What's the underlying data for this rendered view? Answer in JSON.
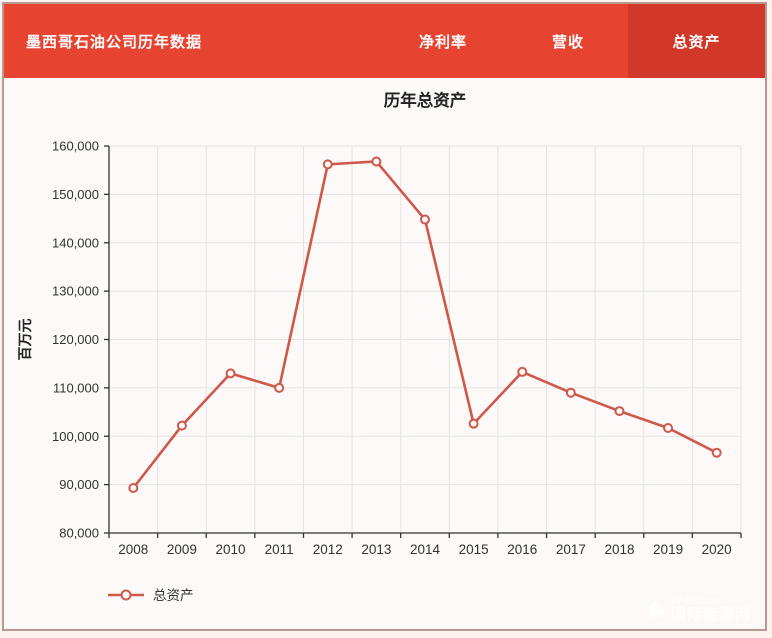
{
  "header": {
    "title": "墨西哥石油公司历年数据",
    "tabs": [
      {
        "label": "净利率",
        "active": false
      },
      {
        "label": "营收",
        "active": false
      },
      {
        "label": "总资产",
        "active": true
      }
    ]
  },
  "watermark": {
    "site": "IN-EN.com",
    "name": "国际能源网"
  },
  "colors": {
    "header_red": "#e74331",
    "active_tab_red": "#d13829",
    "line_red": "#ce584a",
    "axis_dark": "#333333",
    "grid_gray": "#e3e3e3",
    "plot_bg": "#fcf9f8"
  },
  "chart_data": {
    "type": "line",
    "title": "历年总资产",
    "xlabel": "",
    "ylabel": "百万元",
    "categories": [
      "2008",
      "2009",
      "2010",
      "2011",
      "2012",
      "2013",
      "2014",
      "2015",
      "2016",
      "2017",
      "2018",
      "2019",
      "2020"
    ],
    "series": [
      {
        "name": "总资产",
        "values": [
          89300,
          102200,
          113000,
          110000,
          156200,
          156800,
          144800,
          102600,
          113300,
          109000,
          105200,
          101700,
          96600
        ]
      }
    ],
    "ylim": [
      80000,
      160000
    ],
    "ytick_step": 10000,
    "grid": true,
    "legend_position": "bottom-left",
    "legend": [
      "总资产"
    ]
  }
}
